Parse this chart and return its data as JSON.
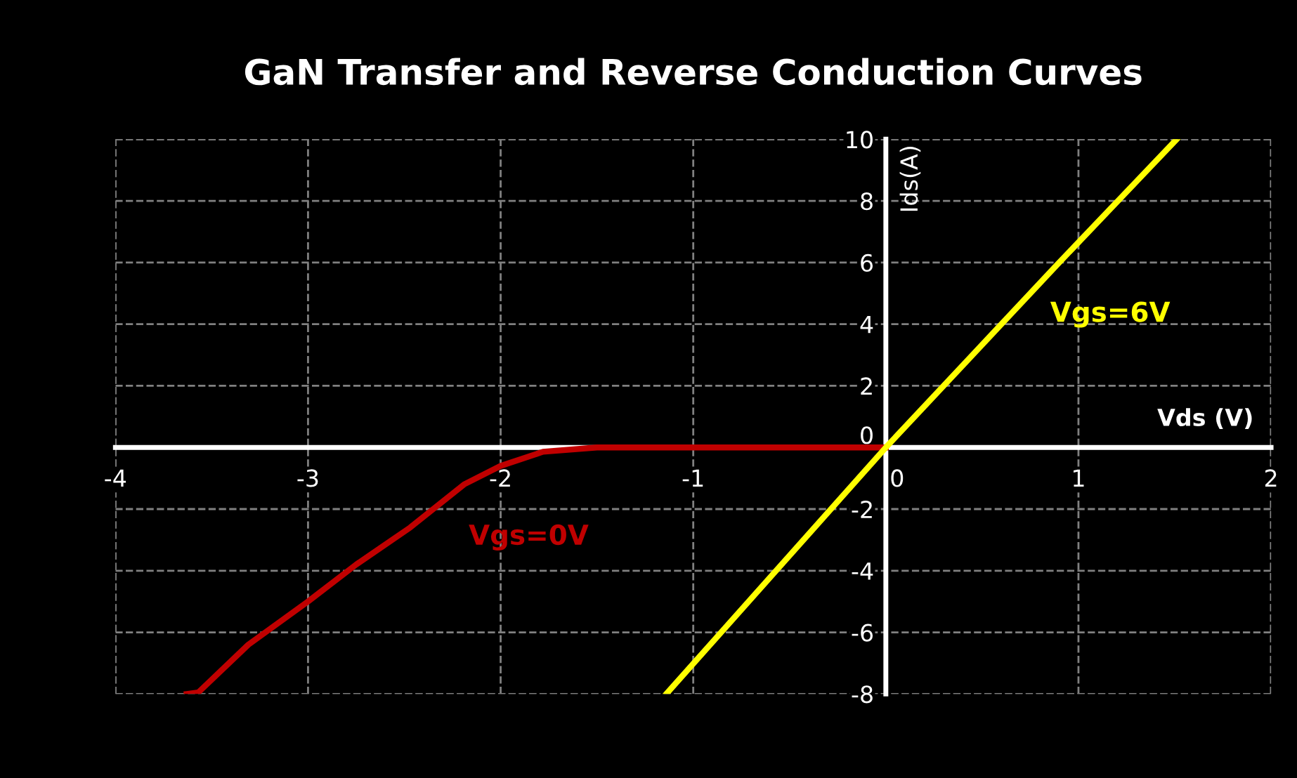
{
  "chart_data": {
    "type": "line",
    "title": "GaN Transfer and Reverse Conduction Curves",
    "xlabel": "Vds (V)",
    "ylabel": "Ids(A)",
    "xlim": [
      -4,
      2
    ],
    "ylim": [
      -8,
      10
    ],
    "xticks": [
      -4,
      -3,
      -2,
      -1,
      0,
      1,
      2
    ],
    "yticks": [
      -8,
      -6,
      -4,
      -2,
      0,
      2,
      4,
      6,
      8,
      10
    ],
    "grid": true,
    "legend": false,
    "marker": "none",
    "line_style": "solid",
    "series": [
      {
        "name": "Vgs=0V",
        "color": "#c00000",
        "x": [
          -3.63,
          -3.57,
          -3.31,
          -3.0,
          -2.75,
          -2.47,
          -2.19,
          -2.0,
          -1.78,
          -1.5,
          -1.0,
          -0.5,
          0
        ],
        "values": [
          -8,
          -7.95,
          -6.4,
          -5.0,
          -3.8,
          -2.6,
          -1.2,
          -0.6,
          -0.14,
          0,
          0,
          0,
          0
        ]
      },
      {
        "name": "Vgs=6V",
        "color": "#ffff00",
        "x": [
          -1.14,
          -0.57,
          0,
          0.6,
          0.9,
          1.51
        ],
        "values": [
          -8,
          -4,
          0,
          4,
          6,
          10
        ]
      }
    ]
  }
}
